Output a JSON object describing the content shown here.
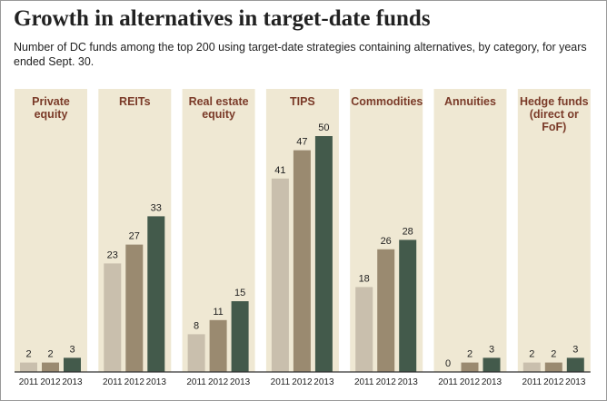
{
  "chart_data": {
    "type": "bar",
    "title": "Growth in alternatives in target-date funds",
    "subtitle": "Number of DC funds among the top 200 using target-date strategies containing alternatives, by category, for years ended Sept. 30.",
    "categories": [
      "2011",
      "2012",
      "2013"
    ],
    "colors": [
      "#c9bfad",
      "#9a8a70",
      "#435a4b"
    ],
    "panels": [
      {
        "title": "Private equity",
        "values": [
          2,
          2,
          3
        ]
      },
      {
        "title": "REITs",
        "values": [
          23,
          27,
          33
        ]
      },
      {
        "title": "Real estate equity",
        "values": [
          8,
          11,
          15
        ]
      },
      {
        "title": "TIPS",
        "values": [
          41,
          47,
          50
        ]
      },
      {
        "title": "Commodities",
        "values": [
          18,
          26,
          28
        ]
      },
      {
        "title": "Annuities",
        "values": [
          0,
          2,
          3
        ]
      },
      {
        "title": "Hedge funds (direct or FoF)",
        "values": [
          2,
          2,
          3
        ]
      }
    ]
  }
}
